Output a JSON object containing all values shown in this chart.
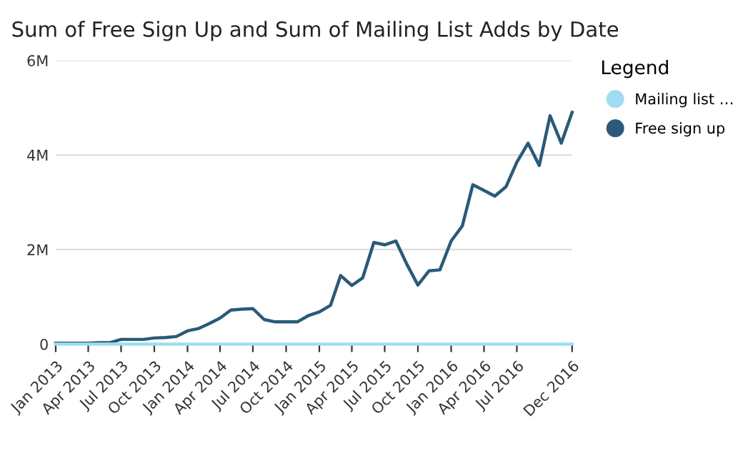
{
  "chart_data": {
    "type": "line",
    "title": "Sum of Free Sign Up and Sum of Mailing List Adds by Date",
    "legend_title": "Legend",
    "legend": "right",
    "x": [
      "2013-01",
      "2013-02",
      "2013-03",
      "2013-04",
      "2013-05",
      "2013-06",
      "2013-07",
      "2013-08",
      "2013-09",
      "2013-10",
      "2013-11",
      "2013-12",
      "2014-01",
      "2014-02",
      "2014-03",
      "2014-04",
      "2014-05",
      "2014-06",
      "2014-07",
      "2014-08",
      "2014-09",
      "2014-10",
      "2014-11",
      "2014-12",
      "2015-01",
      "2015-02",
      "2015-03",
      "2015-04",
      "2015-05",
      "2015-06",
      "2015-07",
      "2015-08",
      "2015-09",
      "2015-10",
      "2015-11",
      "2015-12",
      "2016-01",
      "2016-02",
      "2016-03",
      "2016-04",
      "2016-05",
      "2016-06",
      "2016-07",
      "2016-08",
      "2016-09",
      "2016-10",
      "2016-11",
      "2016-12"
    ],
    "series": [
      {
        "name": "Mailing list …",
        "color": "#9fdcf0",
        "values": [
          0,
          0,
          0,
          0,
          0,
          0,
          0,
          0,
          0,
          0,
          0,
          0,
          0,
          0,
          0,
          0,
          0,
          0,
          0,
          0,
          0,
          0,
          0,
          0,
          0,
          0,
          0,
          0,
          0,
          0,
          0,
          0,
          0,
          0,
          0,
          0,
          0,
          0,
          0,
          0,
          0,
          0,
          0,
          0,
          0,
          0,
          0,
          0
        ]
      },
      {
        "name": "Free sign up",
        "color": "#2a5a78",
        "values": [
          20000,
          20000,
          20000,
          20000,
          30000,
          30000,
          100000,
          100000,
          100000,
          130000,
          140000,
          160000,
          280000,
          330000,
          430000,
          550000,
          720000,
          740000,
          750000,
          520000,
          470000,
          470000,
          470000,
          600000,
          680000,
          820000,
          1450000,
          1240000,
          1400000,
          2150000,
          2100000,
          2180000,
          1680000,
          1250000,
          1550000,
          1570000,
          2180000,
          2500000,
          3370000,
          3250000,
          3130000,
          3330000,
          3850000,
          4250000,
          3780000,
          4830000,
          4250000,
          4900000
        ]
      }
    ],
    "xlim": [
      "2013-01",
      "2016-12"
    ],
    "xticks": [
      {
        "value": "2013-01",
        "label": "Jan 2013"
      },
      {
        "value": "2013-04",
        "label": "Apr 2013"
      },
      {
        "value": "2013-07",
        "label": "Jul 2013"
      },
      {
        "value": "2013-10",
        "label": "Oct 2013"
      },
      {
        "value": "2014-01",
        "label": "Jan 2014"
      },
      {
        "value": "2014-04",
        "label": "Apr 2014"
      },
      {
        "value": "2014-07",
        "label": "Jul 2014"
      },
      {
        "value": "2014-10",
        "label": "Oct 2014"
      },
      {
        "value": "2015-01",
        "label": "Jan 2015"
      },
      {
        "value": "2015-04",
        "label": "Apr 2015"
      },
      {
        "value": "2015-07",
        "label": "Jul 2015"
      },
      {
        "value": "2015-10",
        "label": "Oct 2015"
      },
      {
        "value": "2016-01",
        "label": "Jan 2016"
      },
      {
        "value": "2016-04",
        "label": "Apr 2016"
      },
      {
        "value": "2016-07",
        "label": "Jul 2016"
      },
      {
        "value": "2016-12",
        "label": "Dec 2016"
      }
    ],
    "ylim": [
      0,
      6000000
    ],
    "yticks": [
      {
        "value": 0,
        "label": "0"
      },
      {
        "value": 2000000,
        "label": "2M"
      },
      {
        "value": 4000000,
        "label": "4M"
      },
      {
        "value": 6000000,
        "label": "6M"
      }
    ],
    "grid": "y",
    "marker": "none",
    "line_style": "solid"
  }
}
